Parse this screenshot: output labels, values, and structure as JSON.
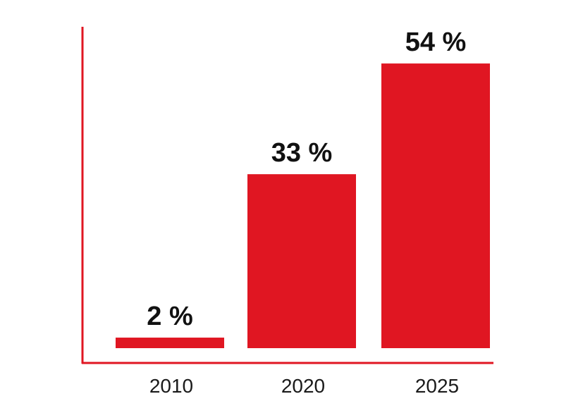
{
  "chart_data": {
    "type": "bar",
    "categories": [
      "2010",
      "2020",
      "2025"
    ],
    "values": [
      2,
      33,
      54
    ],
    "value_labels": [
      "2 %",
      "33 %",
      "54 %"
    ],
    "title": "",
    "xlabel": "",
    "ylabel": "",
    "ylim": [
      0,
      60
    ],
    "grid": false,
    "legend": "none",
    "colors": {
      "bar": "#e01622",
      "axis": "#e01622",
      "value_text": "#111111",
      "tick_text": "#1a1a1a"
    }
  }
}
